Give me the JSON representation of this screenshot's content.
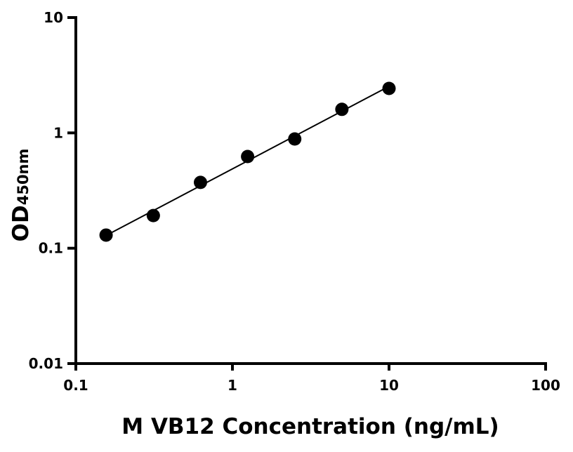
{
  "chart_data": {
    "type": "scatter",
    "xlabel": "M VB12 Concentration (ng/mL)",
    "ylabel_main": "OD",
    "ylabel_sub": "450nm",
    "xscale": "log",
    "yscale": "log",
    "xlim": [
      0.1,
      100
    ],
    "ylim": [
      0.01,
      10
    ],
    "xticks": [
      0.1,
      1,
      10,
      100
    ],
    "xtick_labels": [
      "0.1",
      "1",
      "10",
      "100"
    ],
    "yticks": [
      0.01,
      0.1,
      1,
      10
    ],
    "ytick_labels": [
      "0.01",
      "0.1",
      "1",
      "10"
    ],
    "grid": false,
    "series": [
      {
        "x": [
          0.156,
          0.3125,
          0.625,
          1.25,
          2.5,
          5,
          10
        ],
        "y": [
          0.13,
          0.192,
          0.372,
          0.624,
          0.886,
          1.6,
          2.43
        ],
        "marker": "circle",
        "fit_line": true,
        "color": "#000000"
      }
    ]
  }
}
